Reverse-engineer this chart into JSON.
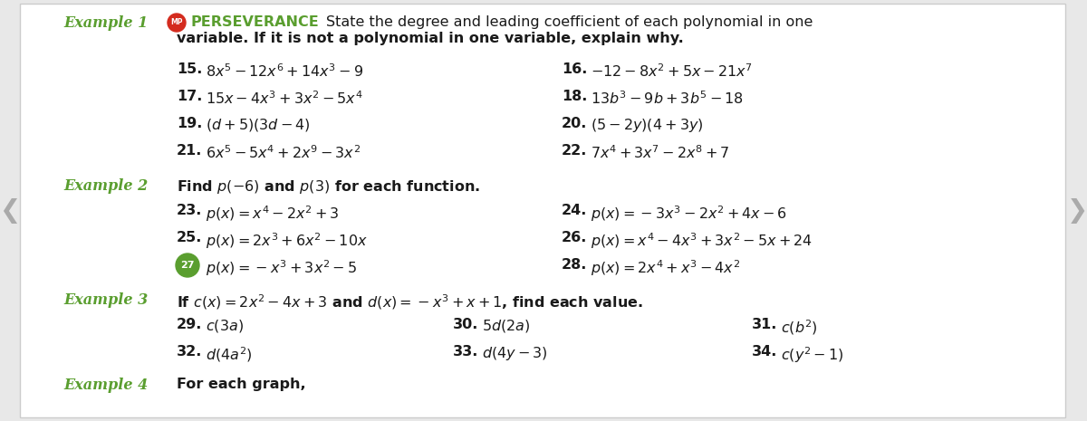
{
  "bg_color": "#e8e8e8",
  "page_bg": "#ffffff",
  "green_color": "#5a9e2f",
  "red_color": "#d42b1e",
  "dark_text": "#1a1a1a",
  "example1_label": "Example 1",
  "perseverance_text": "PERSEVERANCE",
  "intro_line1": "State the degree and leading coefficient of each polynomial in one",
  "intro_line2": "variable. If it is not a polynomial in one variable, explain why.",
  "col1_items": [
    [
      "15.",
      "$8x^5 - 12x^6 + 14x^3 - 9$"
    ],
    [
      "17.",
      "$15x - 4x^3 + 3x^2 - 5x^4$"
    ],
    [
      "19.",
      "$(d + 5)(3d - 4)$"
    ],
    [
      "21.",
      "$6x^5 - 5x^4 + 2x^9 - 3x^2$"
    ]
  ],
  "col2_items": [
    [
      "16.",
      "$-12 - 8x^2 + 5x - 21x^7$"
    ],
    [
      "18.",
      "$13b^3 - 9b + 3b^5 - 18$"
    ],
    [
      "20.",
      "$(5 - 2y)(4 + 3y)$"
    ],
    [
      "22.",
      "$7x^4 + 3x^7 - 2x^8 + 7$"
    ]
  ],
  "example2_label": "Example 2",
  "example2_intro_bold": "Find ",
  "example2_intro_math": "$p(-6)$",
  "example2_intro_mid": " and ",
  "example2_intro_math2": "$p(3)$",
  "example2_intro_end": " for each function.",
  "ex2_col1": [
    [
      "23.",
      "$p(x) = x^4 - 2x^2 + 3$"
    ],
    [
      "25.",
      "$p(x) = 2x^3 + 6x^2 - 10x$"
    ],
    [
      "27",
      "$p(x) = -x^3 + 3x^2 - 5$"
    ]
  ],
  "ex2_col2": [
    [
      "24.",
      "$p(x) = -3x^3 - 2x^2 + 4x - 6$"
    ],
    [
      "26.",
      "$p(x) = x^4 - 4x^3 + 3x^2 - 5x + 24$"
    ],
    [
      "28.",
      "$p(x) = 2x^4 + x^3 - 4x^2$"
    ]
  ],
  "example3_label": "Example 3",
  "example3_intro": "If $c(x) = 2x^2 - 4x + 3$ and $d(x) = -x^3 + x + 1$, find each value.",
  "ex3_col1": [
    [
      "29.",
      "$c(3a)$"
    ],
    [
      "32.",
      "$d(4a^2)$"
    ]
  ],
  "ex3_col2": [
    [
      "30.",
      "$5d(2a)$"
    ],
    [
      "33.",
      "$d(4y - 3)$"
    ]
  ],
  "ex3_col3": [
    [
      "31.",
      "$c(b^2)$"
    ],
    [
      "34.",
      "$c(y^2 - 1)$"
    ]
  ],
  "example4_label": "Example 4",
  "example4_intro": "For each graph,"
}
